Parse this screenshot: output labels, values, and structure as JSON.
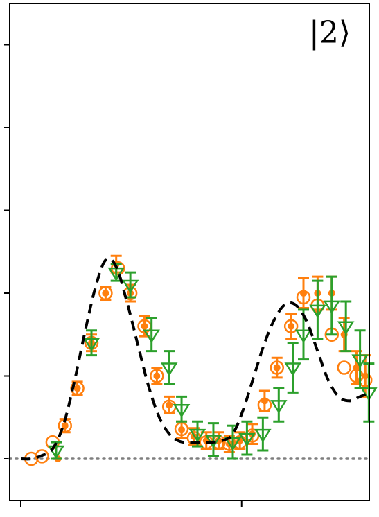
{
  "chart_data": {
    "type": "scatter",
    "annotation": "|2⟩",
    "xlim": [
      0,
      1
    ],
    "ylim": [
      -0.05,
      0.5
    ],
    "yticks": [
      0.0,
      0.1,
      0.2,
      0.3,
      0.4,
      0.5
    ],
    "xticks": [
      0.0,
      0.625
    ],
    "baseline_y": 0.0,
    "colors": {
      "fit": "#000000",
      "baseline": "#7f7f7f",
      "orange": "#ff7f0e",
      "green": "#2ca02c"
    },
    "series": [
      {
        "marker": "dashed-line",
        "x": [
          0.0,
          0.03,
          0.06,
          0.09,
          0.12,
          0.15,
          0.18,
          0.21,
          0.24,
          0.27,
          0.3,
          0.33,
          0.36,
          0.39,
          0.42,
          0.45,
          0.48,
          0.51,
          0.54,
          0.57,
          0.6,
          0.63,
          0.66,
          0.69,
          0.72,
          0.75,
          0.78,
          0.81,
          0.84,
          0.87,
          0.9,
          0.93,
          0.96,
          0.99
        ],
        "y": [
          0.0,
          0.0,
          0.004,
          0.012,
          0.04,
          0.09,
          0.15,
          0.205,
          0.24,
          0.232,
          0.19,
          0.14,
          0.09,
          0.052,
          0.03,
          0.021,
          0.02,
          0.02,
          0.02,
          0.022,
          0.03,
          0.06,
          0.1,
          0.14,
          0.17,
          0.187,
          0.185,
          0.165,
          0.13,
          0.095,
          0.075,
          0.07,
          0.075,
          0.08
        ]
      },
      {
        "marker": "open-circle",
        "x": [
          0.03,
          0.06,
          0.09,
          0.125,
          0.16,
          0.2,
          0.24,
          0.275,
          0.31,
          0.35,
          0.385,
          0.42,
          0.455,
          0.49,
          0.525,
          0.56,
          0.59,
          0.62,
          0.655,
          0.69,
          0.725,
          0.765,
          0.8,
          0.84,
          0.88,
          0.915,
          0.95,
          0.975
        ],
        "y": [
          0.0,
          0.003,
          0.02,
          0.04,
          0.085,
          0.14,
          0.2,
          0.23,
          0.2,
          0.16,
          0.1,
          0.063,
          0.036,
          0.025,
          0.02,
          0.02,
          0.018,
          0.02,
          0.028,
          0.065,
          0.11,
          0.16,
          0.195,
          0.185,
          0.15,
          0.11,
          0.1,
          0.095
        ],
        "err": [
          0,
          0,
          0,
          0,
          0,
          0,
          0,
          0,
          0,
          0,
          0,
          0,
          0,
          0,
          0,
          0,
          0,
          0,
          0,
          0,
          0,
          0,
          0,
          0,
          0,
          0,
          0,
          0
        ]
      },
      {
        "marker": "filled-dot",
        "x": [
          0.105,
          0.125,
          0.16,
          0.2,
          0.24,
          0.27,
          0.31,
          0.35,
          0.385,
          0.42,
          0.455,
          0.49,
          0.525,
          0.56,
          0.59,
          0.62,
          0.655,
          0.69,
          0.725,
          0.765,
          0.8,
          0.84,
          0.88,
          0.915,
          0.95,
          0.975
        ],
        "y": [
          0.0,
          0.04,
          0.085,
          0.14,
          0.2,
          0.235,
          0.2,
          0.16,
          0.1,
          0.065,
          0.035,
          0.027,
          0.022,
          0.022,
          0.018,
          0.022,
          0.03,
          0.07,
          0.11,
          0.16,
          0.2,
          0.2,
          0.2,
          0.15,
          0.11,
          0.1
        ],
        "err": [
          0,
          0.008,
          0.008,
          0.01,
          0.008,
          0.01,
          0.01,
          0.012,
          0.01,
          0.01,
          0.01,
          0.01,
          0.01,
          0.01,
          0.01,
          0.01,
          0.012,
          0.012,
          0.012,
          0.015,
          0.018,
          0.02,
          0.02,
          0.02,
          0.02,
          0.025
        ]
      },
      {
        "marker": "triangle-down",
        "x": [
          0.1,
          0.2,
          0.27,
          0.31,
          0.37,
          0.42,
          0.455,
          0.5,
          0.545,
          0.6,
          0.64,
          0.685,
          0.73,
          0.77,
          0.8,
          0.84,
          0.88,
          0.92,
          0.96,
          0.985
        ],
        "y": [
          0.01,
          0.14,
          0.225,
          0.21,
          0.15,
          0.11,
          0.06,
          0.03,
          0.023,
          0.02,
          0.025,
          0.03,
          0.065,
          0.11,
          0.15,
          0.18,
          0.185,
          0.16,
          0.12,
          0.08
        ],
        "err": [
          0.01,
          0.015,
          0.01,
          0.015,
          0.02,
          0.02,
          0.015,
          0.015,
          0.02,
          0.02,
          0.02,
          0.02,
          0.02,
          0.03,
          0.03,
          0.035,
          0.035,
          0.03,
          0.035,
          0.035
        ]
      }
    ]
  }
}
